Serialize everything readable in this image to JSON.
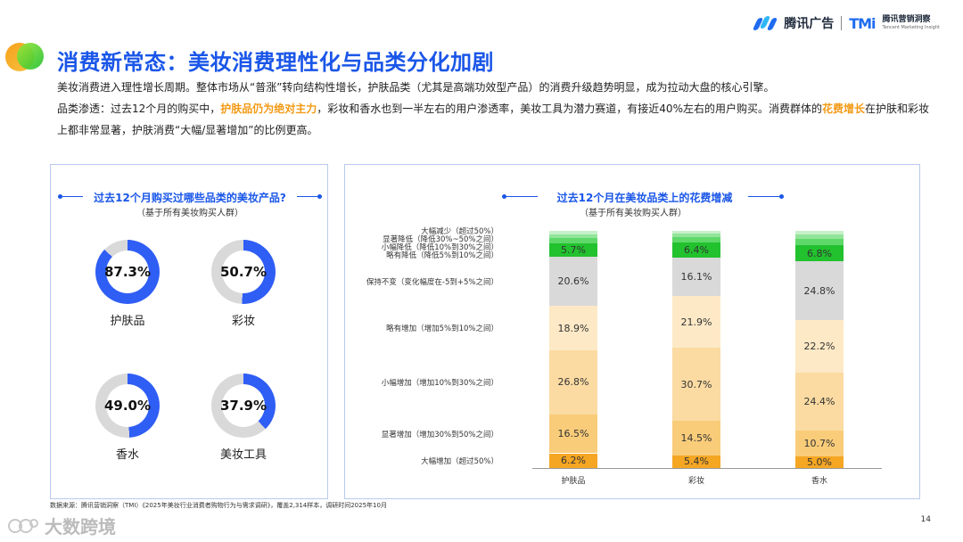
{
  "header": {
    "brand_tencent_ads": "腾讯广告",
    "brand_tmi_logo": "TMi",
    "brand_tmi_cn": "腾讯营销洞察",
    "brand_tmi_en": "Tencent Marketing Insight"
  },
  "title": "消费新常态：美妆消费理性化与品类分化加剧",
  "para1": "美妆消费进入理性增长周期。整体市场从“普涨”转向结构性增长，护肤品类（尤其是高端功效型产品）的消费升级趋势明显，成为拉动大盘的核心引擎。",
  "para2": {
    "a": "品类渗透：过去12个月的购买中，",
    "hl1": "护肤品仍为绝对主力",
    "b": "，彩妆和香水也到一半左右的用户渗透率，美妆工具为潜力赛道，有接近40%左右的用户购买。消费群体的",
    "hl2": "花费增长",
    "c": "在护肤和彩妆上都非常显著，护肤消费“大幅/显著增加”的比例更高。"
  },
  "left_panel": {
    "title": "过去12个月购买过哪些品类的美妆产品?",
    "subtitle": "（基于所有美妆购买人群）",
    "items": [
      {
        "label": "护肤品",
        "value": "87.3%",
        "pct": 87.3
      },
      {
        "label": "彩妆",
        "value": "50.7%",
        "pct": 50.7
      },
      {
        "label": "香水",
        "value": "49.0%",
        "pct": 49.0
      },
      {
        "label": "美妆工具",
        "value": "37.9%",
        "pct": 37.9
      }
    ]
  },
  "right_panel": {
    "title": "过去12个月在美妆品类上的花费增减",
    "subtitle": "（基于所有美妆购买人群）"
  },
  "chart_data": {
    "type": "bar",
    "stacked": true,
    "categories": [
      "护肤品",
      "彩妆",
      "香水"
    ],
    "series": [
      {
        "name": "大幅增加（超过50%）",
        "values": [
          6.2,
          5.4,
          5.0
        ],
        "labels": [
          "6.2%",
          "5.4%",
          "5.0%"
        ],
        "color": "#f5a623"
      },
      {
        "name": "显著增加（增加30%到50%之间）",
        "values": [
          16.5,
          14.5,
          10.7
        ],
        "labels": [
          "16.5%",
          "14.5%",
          "10.7%"
        ],
        "color": "#f9cc7a"
      },
      {
        "name": "小幅增加（增加10%到30%之间）",
        "values": [
          26.8,
          30.7,
          24.4
        ],
        "labels": [
          "26.8%",
          "30.7%",
          "24.4%"
        ],
        "color": "#fbdba2"
      },
      {
        "name": "略有增加（增加5%到10%之间）",
        "values": [
          18.9,
          21.9,
          22.2
        ],
        "labels": [
          "18.9%",
          "21.9%",
          "22.2%"
        ],
        "color": "#fde9c6"
      },
      {
        "name": "保持不变（变化幅度在-5到+5%之间）",
        "values": [
          20.6,
          16.1,
          24.8
        ],
        "labels": [
          "20.6%",
          "16.1%",
          "24.8%"
        ],
        "color": "#d9d9d9"
      },
      {
        "name": "略有降低（降低5%到10%之间）",
        "values": [
          5.7,
          6.4,
          6.8
        ],
        "labels": [
          "5.7%",
          "6.4%",
          "6.8%"
        ],
        "color": "#22c12e"
      },
      {
        "name": "小幅降低（降低10%到30%之间）",
        "values": [
          2.2,
          2.2,
          2.8
        ],
        "labels": [
          "",
          "",
          ""
        ],
        "color": "#5fd86a"
      },
      {
        "name": "显著降低（降低30%~50%之间）",
        "values": [
          1.6,
          1.5,
          1.8
        ],
        "labels": [
          "",
          "",
          ""
        ],
        "color": "#92e59a"
      },
      {
        "name": "大幅减少（超过50%）",
        "values": [
          1.5,
          1.3,
          1.5
        ],
        "labels": [
          "",
          "",
          ""
        ],
        "color": "#c6f0ca"
      }
    ]
  },
  "source": "数据来源：腾讯营销洞察（TMI）《2025年美妆行业消费者购物行为与需求调研》，覆盖2,314样本，调研时间2025年10月",
  "page_number": "14",
  "watermark": "大数跨境",
  "colors": {
    "accent": "#1a56e8",
    "highlight": "#f39a15",
    "donut_fill": "#2f5ef5",
    "donut_track": "#d9d9d9"
  }
}
